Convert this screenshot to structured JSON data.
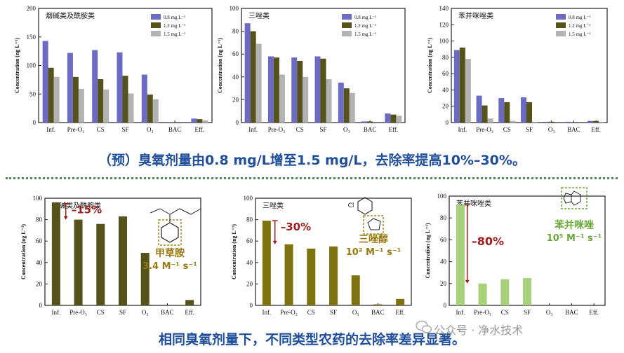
{
  "caption_top": "（预）臭氧剂量由0.8 mg/L增至1.5 mg/L，去除率提高10%–30%。",
  "caption_bottom": "相同臭氧剂量下，不同类型农药的去除率差异显著。",
  "watermark": "公众号 · 净水技术",
  "colors": {
    "blue": "#6b6bc4",
    "olive": "#55521a",
    "gray": "#b3b3b3",
    "olive2": "#7f7310",
    "green": "#a8d17c",
    "caption": "#1f4e9a",
    "red": "#a11c1c"
  },
  "chart_data": [
    {
      "type": "bar",
      "title": "烟碱类及酰胺类",
      "ylabel": "Concentration (ng L⁻¹)",
      "ylim": [
        0,
        200
      ],
      "yticks": [
        "0",
        "50",
        "100",
        "150",
        "200"
      ],
      "categories": [
        "Inf.",
        "Pre-O₃",
        "CS",
        "SF",
        "O₃",
        "BAC",
        "Eff."
      ],
      "series": [
        {
          "name": "0.8 mg L⁻¹",
          "color": "#6b6bc4",
          "values": [
            143,
            122,
            127,
            123,
            84,
            1,
            7
          ]
        },
        {
          "name": "1.2 mg L⁻¹",
          "color": "#55521a",
          "values": [
            96,
            80,
            76,
            82,
            49,
            0,
            6
          ]
        },
        {
          "name": "1.5 mg L⁻¹",
          "color": "#b3b3b3",
          "values": [
            80,
            59,
            58,
            51,
            41,
            0,
            4
          ]
        }
      ],
      "legend": "top-right"
    },
    {
      "type": "bar",
      "title": "三唑类",
      "ylabel": "Concentration (ng L⁻¹)",
      "ylim": [
        0,
        100
      ],
      "yticks": [
        "0",
        "20",
        "40",
        "60",
        "80",
        "100"
      ],
      "categories": [
        "Inf.",
        "Pre-O₃",
        "CS",
        "SF",
        "O₃",
        "BAC",
        "Eff."
      ],
      "series": [
        {
          "name": "0.8 mg L⁻¹",
          "color": "#6b6bc4",
          "values": [
            87,
            58,
            57,
            58,
            35,
            1,
            8
          ]
        },
        {
          "name": "1.2 mg L⁻¹",
          "color": "#55521a",
          "values": [
            80,
            57,
            54,
            56,
            30,
            1,
            7
          ]
        },
        {
          "name": "1.5 mg L⁻¹",
          "color": "#b3b3b3",
          "values": [
            69,
            42,
            40,
            38,
            26,
            0,
            6
          ]
        }
      ],
      "legend": "top-right"
    },
    {
      "type": "bar",
      "title": "苯并咪唑类",
      "ylabel": "Concentration (ng L⁻¹)",
      "ylim": [
        0,
        140
      ],
      "yticks": [
        "0",
        "20",
        "40",
        "60",
        "80",
        "100",
        "120",
        "140"
      ],
      "categories": [
        "Inf.",
        "Pre-O₃",
        "CS",
        "SF",
        "O₃",
        "BAC",
        "Eff."
      ],
      "series": [
        {
          "name": "0.8 mg L⁻¹",
          "color": "#6b6bc4",
          "values": [
            89,
            33,
            30,
            31,
            1,
            1,
            2
          ]
        },
        {
          "name": "1.2 mg L⁻¹",
          "color": "#55521a",
          "values": [
            92,
            21,
            25,
            25,
            1,
            0,
            2
          ]
        },
        {
          "name": "1.5 mg L⁻¹",
          "color": "#b3b3b3",
          "values": [
            78,
            5,
            2,
            1,
            0,
            0,
            1
          ]
        }
      ],
      "legend": "top-right"
    },
    {
      "type": "bar",
      "title": "烟碱类及酰胺类",
      "ylabel": "Concentration (ng L⁻¹)",
      "ylim": [
        0,
        100
      ],
      "yticks": [
        "0",
        "20",
        "40",
        "60",
        "80",
        "100"
      ],
      "categories": [
        "Inf.",
        "Pre-O₃",
        "CS",
        "SF",
        "O₃",
        "BAC",
        "Eff."
      ],
      "series": [
        {
          "color": "#55521a",
          "values": [
            96,
            80,
            76,
            83,
            49,
            0,
            5
          ]
        }
      ],
      "annotations": {
        "reduction": "–15%",
        "compound": "甲草胺",
        "rate": "3.4 M⁻¹ s⁻¹"
      }
    },
    {
      "type": "bar",
      "title": "三唑类",
      "ylabel": "Concentration (ng L⁻¹)",
      "ylim": [
        0,
        100
      ],
      "yticks": [
        "0",
        "20",
        "40",
        "60",
        "80",
        "100"
      ],
      "categories": [
        "Inf.",
        "Pre-O₃",
        "CS",
        "SF",
        "O₃",
        "BAC",
        "Eff."
      ],
      "series": [
        {
          "color": "#7f7310",
          "values": [
            79,
            57,
            53,
            55,
            28,
            1,
            6
          ]
        }
      ],
      "annotations": {
        "reduction": "–30%",
        "compound": "三唑醇",
        "rate": "10² M⁻¹ s⁻¹"
      }
    },
    {
      "type": "bar",
      "title": "苯并咪唑类",
      "ylabel": "Concentration (ng L⁻¹)",
      "ylim": [
        0,
        100
      ],
      "yticks": [
        "0",
        "20",
        "40",
        "60",
        "80",
        "100"
      ],
      "categories": [
        "Inf.",
        "Pre-O₃",
        "CS",
        "SF",
        "O₃",
        "BAC",
        "Eff."
      ],
      "series": [
        {
          "color": "#a8d17c",
          "values": [
            92,
            20,
            24,
            25,
            0,
            0,
            0
          ]
        }
      ],
      "annotations": {
        "reduction": "–80%",
        "compound": "苯并咪唑",
        "rate": "10⁵ M⁻¹ s⁻¹"
      }
    }
  ]
}
